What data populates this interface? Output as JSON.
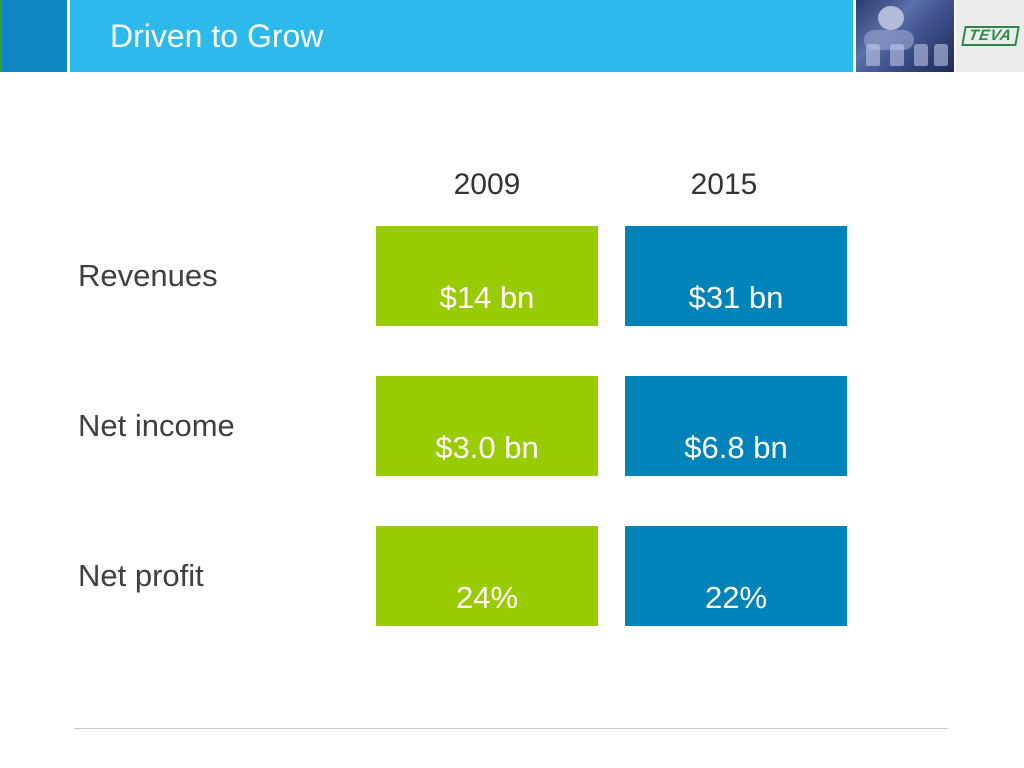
{
  "header": {
    "title": "Driven to Grow",
    "logo_text": "TEVA",
    "photo_icon": "lab-scientist-photo"
  },
  "colors": {
    "header_bar": "#2cb9ec",
    "header_block": "#0e85c0",
    "year_2009": "#99cc00",
    "year_2015": "#0083b8"
  },
  "table": {
    "years": [
      "2009",
      "2015"
    ],
    "rows": [
      {
        "label": "Revenues",
        "values": [
          "$14 bn",
          "$31 bn"
        ]
      },
      {
        "label": "Net income",
        "values": [
          "$3.0 bn",
          "$6.8 bn"
        ]
      },
      {
        "label": "Net profit",
        "values": [
          "24%",
          "22%"
        ]
      }
    ]
  }
}
